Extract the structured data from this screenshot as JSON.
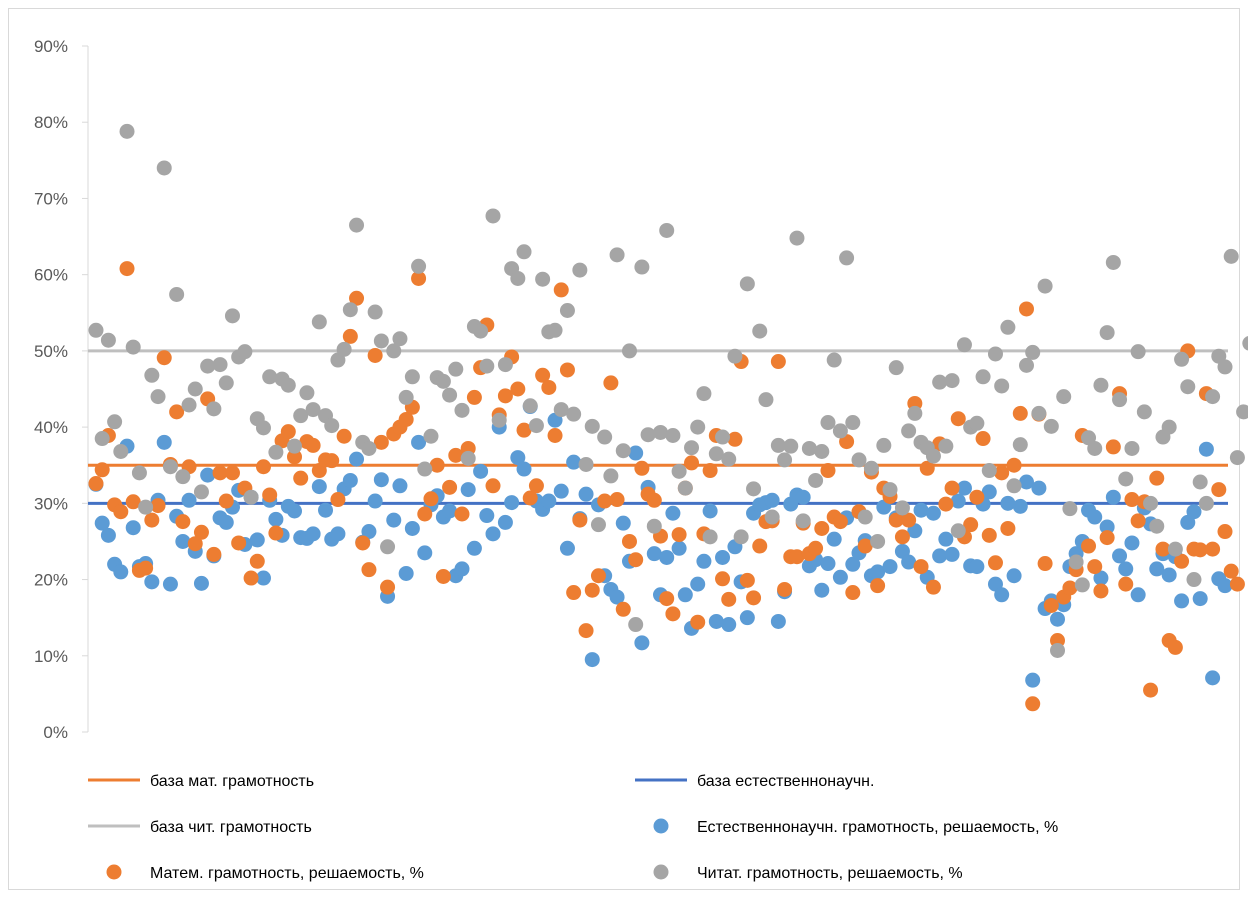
{
  "chart_data": {
    "type": "scatter",
    "title": "",
    "xlabel": "",
    "ylabel": "",
    "ylim": [
      0,
      90
    ],
    "y_ticks": [
      "0%",
      "10%",
      "20%",
      "30%",
      "40%",
      "50%",
      "60%",
      "70%",
      "80%",
      "90%"
    ],
    "grid": false,
    "legend_position": "bottom",
    "baselines": [
      {
        "name": "база мат. грамотность",
        "value": 35,
        "color": "#ED7D31"
      },
      {
        "name": "база естественнонаучн.",
        "value": 30,
        "color": "#4472C4"
      },
      {
        "name": "база чит. грамотность",
        "value": 50,
        "color": "#BFBFBF"
      }
    ],
    "series": [
      {
        "name": "Естественнонаучн. грамотность, решаемость, %",
        "color": "#5B9BD5",
        "values": [
          32.5,
          27.4,
          25.8,
          22,
          21,
          37.5,
          26.8,
          21.7,
          22.1,
          19.7,
          30.4,
          38,
          19.4,
          28.3,
          25,
          30.4,
          23.7,
          19.5,
          33.7,
          23.1,
          28.1,
          27.5,
          29.5,
          31.7,
          24.6,
          30.8,
          25.2,
          20.2,
          30.4,
          27.9,
          25.8,
          29.6,
          29,
          25.5,
          25.4,
          26,
          32.2,
          29.1,
          25.3,
          26,
          31.9,
          33,
          35.8,
          24.9,
          26.3,
          30.3,
          33.1,
          17.8,
          27.8,
          32.3,
          20.8,
          26.7,
          38,
          23.5,
          29.8,
          31,
          28.2,
          29,
          20.5,
          21.4,
          31.8,
          24.1,
          34.2,
          28.4,
          26,
          40,
          27.5,
          30.1,
          36,
          34.5,
          42.7,
          30.3,
          29.2,
          30.3,
          40.9,
          31.6,
          24.1,
          35.4,
          28,
          31.2,
          9.5,
          29.8,
          20.5,
          18.7,
          17.7,
          27.4,
          22.4,
          36.6,
          11.7,
          32.1,
          23.4,
          18,
          22.9,
          28.7,
          24.1,
          18,
          13.6,
          19.4,
          22.4,
          29,
          14.5,
          22.9,
          14.1,
          24.3,
          19.7,
          15,
          28.7,
          29.8,
          30.1,
          30.4,
          14.5,
          18.4,
          29.9,
          31.1,
          30.8,
          21.8,
          22.6,
          18.6,
          22.1,
          25.3,
          20.3,
          28.1,
          22,
          23.5,
          25.1,
          20.5,
          21,
          29.5,
          21.7,
          28.1,
          23.7,
          22.3,
          26.4,
          29.1,
          20.3,
          28.7,
          23.1,
          25.3,
          23.3,
          30.3,
          32,
          21.8,
          21.7,
          29.9,
          31.5,
          19.4,
          18,
          30,
          20.5,
          29.6,
          32.8,
          6.8,
          32,
          16.2,
          17.2,
          14.8,
          16.7,
          21.7,
          23.4,
          25,
          29.1,
          28.2,
          20.2,
          26.9,
          30.8,
          23.1,
          21.4,
          24.8,
          18,
          29.4,
          27.3,
          21.4,
          23.4,
          20.6,
          23,
          17.2,
          27.5,
          28.9,
          17.5,
          37.1,
          7.1,
          20.1,
          19.2
        ]
      },
      {
        "name": "Матем. грамотность, решаемость, %",
        "color": "#ED7D31",
        "values": [
          32.6,
          34.4,
          38.9,
          29.8,
          28.9,
          60.8,
          30.2,
          21.2,
          21.5,
          27.8,
          29.7,
          49.1,
          35.1,
          42,
          27.6,
          34.8,
          24.7,
          26.2,
          43.7,
          23.3,
          34,
          30.3,
          34,
          24.8,
          32,
          20.2,
          22.4,
          34.8,
          31.1,
          26.1,
          38.2,
          39.4,
          36.1,
          33.3,
          38.1,
          37.6,
          34.3,
          35.7,
          35.6,
          30.5,
          38.8,
          51.9,
          56.9,
          24.8,
          21.3,
          49.4,
          38,
          19,
          39.1,
          40,
          41,
          42.6,
          59.5,
          28.6,
          30.6,
          35,
          20.4,
          32.1,
          36.3,
          28.6,
          37.2,
          43.9,
          47.8,
          53.4,
          32.3,
          41.6,
          44.1,
          49.2,
          45,
          39.6,
          30.7,
          32.3,
          46.8,
          45.2,
          38.9,
          58,
          47.5,
          18.3,
          27.8,
          13.3,
          18.6,
          20.5,
          30.3,
          45.8,
          30.5,
          16.1,
          25,
          22.6,
          34.6,
          31.2,
          30.4,
          25.7,
          17.5,
          15.5,
          25.9,
          32,
          35.3,
          14.4,
          26,
          34.3,
          38.9,
          20.1,
          17.4,
          38.4,
          48.6,
          19.9,
          17.6,
          24.4,
          27.6,
          27.7,
          48.6,
          18.7,
          23,
          23,
          27.4,
          23.4,
          24.1,
          26.7,
          34.3,
          28.2,
          27.6,
          38.1,
          18.3,
          28.9,
          24.4,
          34.1,
          19.2,
          32,
          30.9,
          27.8,
          25.6,
          27.8,
          43.1,
          21.7,
          34.6,
          19,
          37.8,
          29.9,
          32,
          41.1,
          25.6,
          27.2,
          30.8,
          38.5,
          25.8,
          22.2,
          34,
          26.7,
          35,
          41.8,
          55.5,
          3.7,
          41.7,
          22.1,
          16.6,
          12,
          17.7,
          18.9,
          21.3,
          38.9,
          24.4,
          21.7,
          18.5,
          25.5,
          37.4,
          44.4,
          19.4,
          30.5,
          27.7,
          30.2,
          5.5,
          33.3,
          24,
          12,
          11.1,
          22.4,
          50,
          24,
          23.9,
          44.4,
          24,
          31.8,
          26.3,
          21.1,
          19.4
        ]
      },
      {
        "name": "Читат. грамотность, решаемость, %",
        "color": "#A5A5A5",
        "values": [
          52.7,
          38.5,
          51.4,
          40.7,
          36.8,
          78.8,
          50.5,
          34,
          29.5,
          46.8,
          44,
          74,
          34.8,
          57.4,
          33.5,
          42.9,
          45,
          31.5,
          48,
          42.4,
          48.2,
          45.8,
          54.6,
          49.2,
          49.9,
          30.8,
          41.1,
          39.9,
          46.6,
          36.7,
          46.3,
          45.5,
          37.5,
          41.5,
          44.5,
          42.3,
          53.8,
          41.5,
          40.2,
          48.8,
          50.2,
          55.4,
          66.5,
          38,
          37.2,
          55.1,
          51.3,
          24.3,
          50,
          51.6,
          43.9,
          46.6,
          61.1,
          34.5,
          38.8,
          46.5,
          46,
          44.2,
          47.6,
          42.2,
          35.9,
          53.2,
          52.6,
          48,
          67.7,
          40.9,
          48.2,
          60.8,
          59.5,
          63,
          42.8,
          40.2,
          59.4,
          52.5,
          52.7,
          42.3,
          55.3,
          41.7,
          60.6,
          35.1,
          40.1,
          27.2,
          38.7,
          33.6,
          62.6,
          36.9,
          50,
          14.1,
          61,
          39,
          27,
          39.3,
          65.8,
          38.9,
          34.2,
          32,
          37.3,
          40,
          44.4,
          25.6,
          36.5,
          38.7,
          35.8,
          49.3,
          25.6,
          58.8,
          31.9,
          52.6,
          43.6,
          28.2,
          37.6,
          35.7,
          37.5,
          64.8,
          27.7,
          37.2,
          33,
          36.8,
          40.6,
          48.8,
          39.5,
          62.2,
          40.6,
          35.7,
          28.2,
          34.6,
          25,
          37.6,
          31.8,
          47.8,
          29.4,
          39.5,
          41.8,
          38,
          37.3,
          36.2,
          45.9,
          37.5,
          46.1,
          26.4,
          50.8,
          40,
          40.5,
          46.6,
          34.3,
          49.6,
          45.4,
          53.1,
          32.3,
          37.7,
          48.1,
          49.8,
          41.8,
          58.5,
          40.1,
          10.7,
          44,
          29.3,
          22.3,
          19.3,
          38.6,
          37.2,
          45.5,
          52.4,
          61.6,
          43.6,
          33.2,
          37.2,
          49.9,
          42,
          30,
          27,
          38.7,
          40,
          24,
          48.9,
          45.3,
          20,
          32.8,
          30,
          44,
          49.3,
          47.9,
          62.4,
          36,
          42,
          51,
          31.5,
          50
        ]
      }
    ]
  }
}
